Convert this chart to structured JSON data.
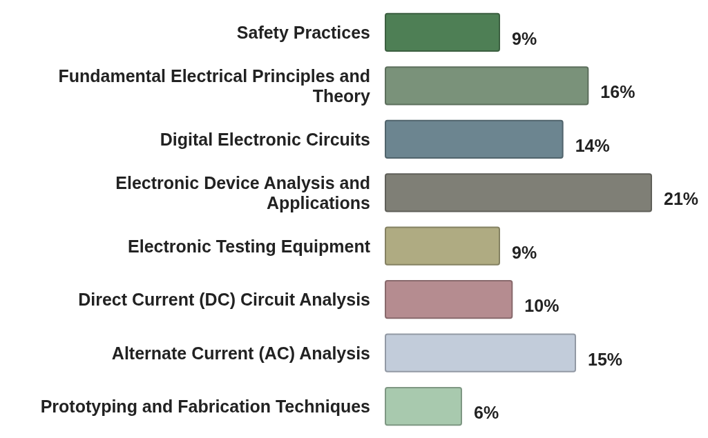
{
  "chart_data": {
    "type": "bar",
    "orientation": "horizontal",
    "categories": [
      "Safety Practices",
      "Fundamental Electrical Principles and Theory",
      "Digital Electronic Circuits",
      "Electronic Device Analysis and Applications",
      "Electronic Testing Equipment",
      "Direct Current (DC) Circuit Analysis",
      "Alternate Current (AC) Analysis",
      "Prototyping and Fabrication Techniques"
    ],
    "values": [
      9,
      16,
      14,
      21,
      9,
      10,
      15,
      6
    ],
    "colors": [
      "#4e7f55",
      "#7a927a",
      "#6c8590",
      "#7f7f76",
      "#afab82",
      "#b58c90",
      "#c2ccda",
      "#a8c9ae"
    ],
    "value_labels": [
      "9%",
      "16%",
      "14%",
      "21%",
      "9%",
      "10%",
      "15%",
      "6%"
    ],
    "relative": false
  }
}
